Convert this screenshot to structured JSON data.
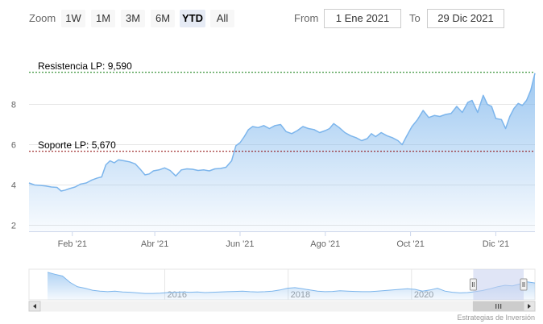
{
  "range_selector": {
    "zoom_label": "Zoom",
    "buttons": [
      "1W",
      "1M",
      "3M",
      "6M",
      "YTD",
      "All"
    ],
    "selected": "YTD"
  },
  "date_inputs": {
    "from_label": "From",
    "from_value": "1 Ene 2021",
    "to_label": "To",
    "to_value": "29 Dic 2021"
  },
  "credits": "Estrategias de Inversión",
  "colors": {
    "line": "#7cb5ec",
    "resistance": "#0a7a0a",
    "support": "#8b0000",
    "navigator_mask": "#c6d0ee"
  },
  "chart_data": {
    "type": "area",
    "title": "",
    "xlabel": "",
    "ylabel": "",
    "x_range": [
      "2021-01-01",
      "2021-12-29"
    ],
    "ylim": [
      1.7,
      10.3
    ],
    "y_ticks": [
      2,
      4,
      6,
      8
    ],
    "x_ticks": [
      {
        "date": "2021-02-01",
        "label": "Feb '21"
      },
      {
        "date": "2021-04-01",
        "label": "Abr '21"
      },
      {
        "date": "2021-06-01",
        "label": "Jun '21"
      },
      {
        "date": "2021-08-01",
        "label": "Ago '21"
      },
      {
        "date": "2021-10-01",
        "label": "Oct '21"
      },
      {
        "date": "2021-12-01",
        "label": "Dic '21"
      }
    ],
    "grid": true,
    "plot_lines": [
      {
        "label": "Resistencia LP: 9,590",
        "value": 9.59
      },
      {
        "label": "Soporte LP: 5,670",
        "value": 5.67
      }
    ],
    "series": [
      {
        "x": [
          "2021-01-01",
          "2021-01-05",
          "2021-01-09",
          "2021-01-13",
          "2021-01-17",
          "2021-01-21",
          "2021-01-24",
          "2021-01-27",
          "2021-01-30",
          "2021-02-03",
          "2021-02-07",
          "2021-02-11",
          "2021-02-15",
          "2021-02-19",
          "2021-02-22",
          "2021-02-25",
          "2021-02-28",
          "2021-03-03",
          "2021-03-06",
          "2021-03-10",
          "2021-03-14",
          "2021-03-18",
          "2021-03-22",
          "2021-03-25",
          "2021-03-28",
          "2021-03-31",
          "2021-04-04",
          "2021-04-08",
          "2021-04-12",
          "2021-04-16",
          "2021-04-20",
          "2021-04-24",
          "2021-04-28",
          "2021-05-02",
          "2021-05-06",
          "2021-05-10",
          "2021-05-14",
          "2021-05-18",
          "2021-05-22",
          "2021-05-26",
          "2021-05-29",
          "2021-06-01",
          "2021-06-04",
          "2021-06-07",
          "2021-06-10",
          "2021-06-14",
          "2021-06-18",
          "2021-06-22",
          "2021-06-26",
          "2021-06-30",
          "2021-07-04",
          "2021-07-08",
          "2021-07-12",
          "2021-07-16",
          "2021-07-20",
          "2021-07-24",
          "2021-07-28",
          "2021-08-01",
          "2021-08-04",
          "2021-08-07",
          "2021-08-11",
          "2021-08-15",
          "2021-08-19",
          "2021-08-23",
          "2021-08-27",
          "2021-08-31",
          "2021-09-03",
          "2021-09-06",
          "2021-09-10",
          "2021-09-14",
          "2021-09-18",
          "2021-09-22",
          "2021-09-25",
          "2021-09-28",
          "2021-10-02",
          "2021-10-06",
          "2021-10-10",
          "2021-10-14",
          "2021-10-18",
          "2021-10-22",
          "2021-10-26",
          "2021-10-30",
          "2021-11-03",
          "2021-11-07",
          "2021-11-11",
          "2021-11-14",
          "2021-11-18",
          "2021-11-22",
          "2021-11-25",
          "2021-11-28",
          "2021-12-01",
          "2021-12-05",
          "2021-12-08",
          "2021-12-11",
          "2021-12-14",
          "2021-12-17",
          "2021-12-20",
          "2021-12-23",
          "2021-12-26",
          "2021-12-29"
        ],
        "values": [
          4.1,
          4.0,
          3.98,
          3.95,
          3.9,
          3.88,
          3.7,
          3.75,
          3.82,
          3.9,
          4.05,
          4.1,
          4.25,
          4.35,
          4.4,
          5.0,
          5.2,
          5.1,
          5.25,
          5.2,
          5.15,
          5.05,
          4.75,
          4.5,
          4.55,
          4.7,
          4.75,
          4.85,
          4.72,
          4.45,
          4.75,
          4.8,
          4.78,
          4.72,
          4.75,
          4.7,
          4.8,
          4.82,
          4.88,
          5.2,
          5.95,
          6.1,
          6.4,
          6.75,
          6.9,
          6.85,
          6.95,
          6.8,
          6.95,
          7.0,
          6.65,
          6.55,
          6.7,
          6.9,
          6.8,
          6.75,
          6.6,
          6.7,
          6.8,
          7.05,
          6.85,
          6.6,
          6.45,
          6.35,
          6.2,
          6.3,
          6.55,
          6.4,
          6.6,
          6.45,
          6.35,
          6.2,
          6.0,
          6.4,
          6.9,
          7.25,
          7.7,
          7.35,
          7.45,
          7.4,
          7.5,
          7.55,
          7.9,
          7.6,
          8.1,
          8.2,
          7.6,
          8.45,
          8.0,
          7.9,
          7.3,
          7.25,
          6.8,
          7.4,
          7.8,
          8.05,
          7.95,
          8.2,
          8.7,
          9.55
        ]
      }
    ]
  },
  "navigator": {
    "year_labels": [
      {
        "year": "2016",
        "value": 2016
      },
      {
        "year": "2018",
        "value": 2018
      },
      {
        "year": "2020",
        "value": 2020
      }
    ],
    "year_range": [
      2013.8,
      2022.0
    ],
    "series_values": [
      0.95,
      0.88,
      0.82,
      0.6,
      0.45,
      0.4,
      0.33,
      0.3,
      0.28,
      0.3,
      0.27,
      0.26,
      0.24,
      0.22,
      0.22,
      0.23,
      0.25,
      0.26,
      0.27,
      0.26,
      0.27,
      0.25,
      0.26,
      0.27,
      0.28,
      0.29,
      0.3,
      0.28,
      0.27,
      0.28,
      0.3,
      0.34,
      0.4,
      0.42,
      0.38,
      0.34,
      0.3,
      0.28,
      0.29,
      0.31,
      0.3,
      0.29,
      0.28,
      0.28,
      0.3,
      0.32,
      0.34,
      0.36,
      0.38,
      0.36,
      0.3,
      0.34,
      0.4,
      0.3,
      0.26,
      0.24,
      0.25,
      0.28,
      0.32,
      0.38,
      0.45,
      0.5,
      0.48,
      0.55,
      0.62,
      0.58
    ],
    "window": [
      "2021-01-01",
      "2021-12-29"
    ]
  }
}
